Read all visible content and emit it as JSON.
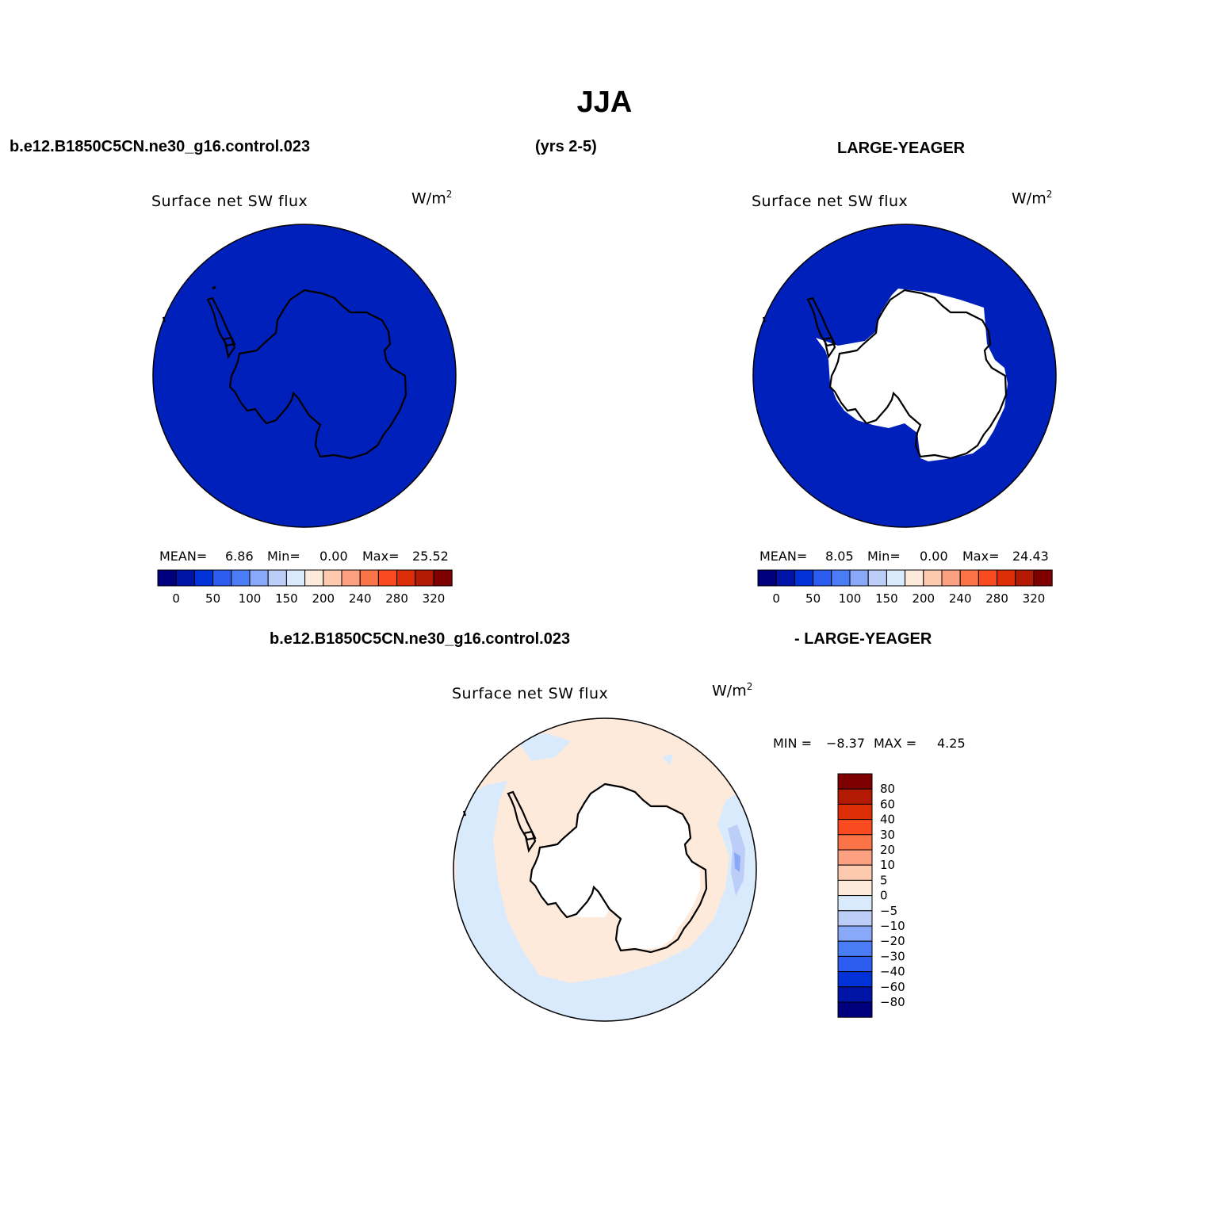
{
  "header": {
    "title": "JJA",
    "case_name": "b.e12.B1850C5CN.ne30_g16.control.023",
    "years": "(yrs 2-5)",
    "ref_name": "LARGE-YEAGER"
  },
  "diff_header": {
    "case_name": "b.e12.B1850C5CN.ne30_g16.control.023",
    "ref_name": "- LARGE-YEAGER"
  },
  "panels": {
    "left": {
      "title": "Surface net SW flux",
      "unit_base": "W/m",
      "unit_exp": "2",
      "mean_label": "MEAN=",
      "mean": "6.86",
      "min_label": "Min=",
      "min": "0.00",
      "max_label": "Max=",
      "max": "25.52"
    },
    "right": {
      "title": "Surface net SW flux",
      "unit_base": "W/m",
      "unit_exp": "2",
      "mean_label": "MEAN=",
      "mean": "8.05",
      "min_label": "Min=",
      "min": "0.00",
      "max_label": "Max=",
      "max": "24.43"
    },
    "diff": {
      "title": "Surface net SW flux",
      "unit_base": "W/m",
      "unit_exp": "2",
      "min_label": "MIN =",
      "min": "−8.37",
      "max_label": "MAX =",
      "max": "4.25"
    }
  },
  "colorbars": {
    "abs_colors": [
      "#00007f",
      "#0015a8",
      "#0032d8",
      "#2d5cf0",
      "#4a7cf5",
      "#89a8f7",
      "#bccdf8",
      "#d8eafc",
      "#feeadb",
      "#fdcab0",
      "#fca082",
      "#fb7448",
      "#fa4b20",
      "#de2e08",
      "#b21a03",
      "#7e0000"
    ],
    "abs_labels": [
      "0",
      "50",
      "100",
      "150",
      "200",
      "240",
      "280",
      "320"
    ],
    "diff_colors_top_down": [
      "#7e0000",
      "#b21a03",
      "#de2e08",
      "#fa4b20",
      "#fb7448",
      "#fca082",
      "#fdcab0",
      "#feeadb",
      "#d8eafc",
      "#bccdf8",
      "#89a8f7",
      "#4a7cf5",
      "#2d5cf0",
      "#0032d8",
      "#0015a8",
      "#00007f"
    ],
    "diff_labels_top_down": [
      "80",
      "60",
      "40",
      "30",
      "20",
      "10",
      "5",
      "0",
      "−5",
      "−10",
      "−20",
      "−30",
      "−40",
      "−60",
      "−80"
    ]
  },
  "map_colors": {
    "ocean_abs": "#0020bb",
    "ice_mask": "#ffffff",
    "diff_positive": "#feeadb",
    "diff_negative_light": "#d8eafc",
    "diff_negative_mid": "#bccdf8",
    "diff_negative_strong": "#89a8f7",
    "coastline": "#000000"
  }
}
